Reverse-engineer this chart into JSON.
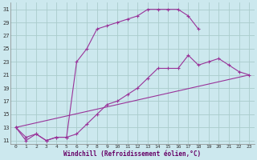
{
  "bg_color": "#cce8ee",
  "grid_color": "#aacccc",
  "line_color": "#993399",
  "marker": "+",
  "xlabel": "Windchill (Refroidissement éolien,°C)",
  "xlim": [
    -0.5,
    23.5
  ],
  "ylim": [
    10.5,
    32
  ],
  "yticks": [
    11,
    13,
    15,
    17,
    19,
    21,
    23,
    25,
    27,
    29,
    31
  ],
  "xticks": [
    0,
    1,
    2,
    3,
    4,
    5,
    6,
    7,
    8,
    9,
    10,
    11,
    12,
    13,
    14,
    15,
    16,
    17,
    18,
    19,
    20,
    21,
    22,
    23
  ],
  "line1_x": [
    0,
    1,
    2,
    3,
    4,
    5,
    6,
    7,
    8,
    9,
    10,
    11,
    12,
    13,
    14,
    15,
    16,
    17,
    18
  ],
  "line1_y": [
    13,
    11,
    12,
    11,
    11.5,
    11.5,
    23,
    25,
    28,
    28.5,
    29,
    29.5,
    30,
    31,
    31,
    31,
    31,
    30,
    28
  ],
  "line2_x": [
    0,
    1,
    2,
    3,
    4,
    5,
    6,
    7,
    8,
    9,
    10,
    11,
    12,
    13,
    14,
    15,
    16,
    17,
    18,
    19,
    20,
    21,
    22,
    23
  ],
  "line2_y": [
    13,
    11.5,
    12,
    11,
    11.5,
    11.5,
    12,
    13.5,
    15,
    16.5,
    17,
    18,
    19,
    20.5,
    22,
    22,
    22,
    24,
    22.5,
    23,
    23.5,
    22.5,
    21.5,
    21
  ],
  "line3_x": [
    0,
    23
  ],
  "line3_y": [
    13,
    21
  ]
}
